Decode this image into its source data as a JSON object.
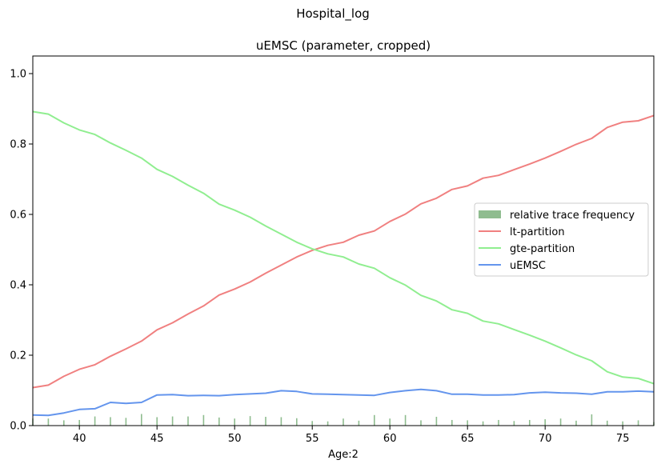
{
  "chart_data": {
    "type": "line",
    "suptitle": "Hospital_log",
    "title": "uEMSC (parameter, cropped)",
    "xlabel": "Age:2",
    "ylabel": "",
    "xlim": [
      37,
      77
    ],
    "ylim": [
      0,
      1.05
    ],
    "xticks": [
      40,
      45,
      50,
      55,
      60,
      65,
      70,
      75
    ],
    "yticks": [
      0.0,
      0.2,
      0.4,
      0.6,
      0.8,
      1.0
    ],
    "ytick_labels": [
      "0.0",
      "0.2",
      "0.4",
      "0.6",
      "0.8",
      "1.0"
    ],
    "grid": false,
    "legend_position": "center-right",
    "x": [
      37,
      38,
      39,
      40,
      41,
      42,
      43,
      44,
      45,
      46,
      47,
      48,
      49,
      50,
      51,
      52,
      53,
      54,
      55,
      56,
      57,
      58,
      59,
      60,
      61,
      62,
      63,
      64,
      65,
      66,
      67,
      68,
      69,
      70,
      71,
      72,
      73,
      74,
      75,
      76,
      77
    ],
    "series": [
      {
        "name": "lt-partition",
        "color": "#f08080",
        "values": [
          0.108,
          0.115,
          0.14,
          0.16,
          0.173,
          0.197,
          0.218,
          0.24,
          0.272,
          0.292,
          0.317,
          0.34,
          0.371,
          0.388,
          0.408,
          0.433,
          0.456,
          0.479,
          0.498,
          0.512,
          0.521,
          0.541,
          0.553,
          0.58,
          0.601,
          0.63,
          0.646,
          0.671,
          0.681,
          0.703,
          0.711,
          0.727,
          0.743,
          0.76,
          0.779,
          0.799,
          0.816,
          0.847,
          0.862,
          0.866,
          0.881
        ]
      },
      {
        "name": "gte-partition",
        "color": "#90ee90",
        "values": [
          0.892,
          0.885,
          0.86,
          0.84,
          0.827,
          0.803,
          0.782,
          0.76,
          0.728,
          0.708,
          0.683,
          0.66,
          0.629,
          0.612,
          0.592,
          0.567,
          0.544,
          0.521,
          0.502,
          0.488,
          0.479,
          0.459,
          0.447,
          0.42,
          0.399,
          0.37,
          0.354,
          0.329,
          0.319,
          0.297,
          0.289,
          0.273,
          0.257,
          0.24,
          0.221,
          0.201,
          0.184,
          0.153,
          0.138,
          0.134,
          0.119
        ]
      },
      {
        "name": "uEMSC",
        "color": "#6495ed",
        "values": [
          0.03,
          0.029,
          0.036,
          0.046,
          0.048,
          0.066,
          0.063,
          0.066,
          0.087,
          0.088,
          0.085,
          0.086,
          0.085,
          0.088,
          0.09,
          0.092,
          0.099,
          0.097,
          0.09,
          0.089,
          0.088,
          0.087,
          0.086,
          0.094,
          0.099,
          0.103,
          0.099,
          0.089,
          0.089,
          0.087,
          0.087,
          0.088,
          0.093,
          0.095,
          0.093,
          0.092,
          0.089,
          0.096,
          0.096,
          0.098,
          0.096
        ]
      }
    ],
    "bars": {
      "name": "relative trace frequency",
      "color": "#8fbc8f",
      "values": [
        0.02,
        0.02,
        0.015,
        0.016,
        0.026,
        0.024,
        0.022,
        0.033,
        0.024,
        0.026,
        0.026,
        0.03,
        0.023,
        0.02,
        0.027,
        0.025,
        0.024,
        0.021,
        0.013,
        0.012,
        0.02,
        0.014,
        0.03,
        0.02,
        0.03,
        0.015,
        0.025,
        0.016,
        0.015,
        0.012,
        0.016,
        0.013,
        0.016,
        0.018,
        0.02,
        0.014,
        0.032,
        0.014,
        0.012,
        0.015,
        0.01
      ]
    }
  }
}
